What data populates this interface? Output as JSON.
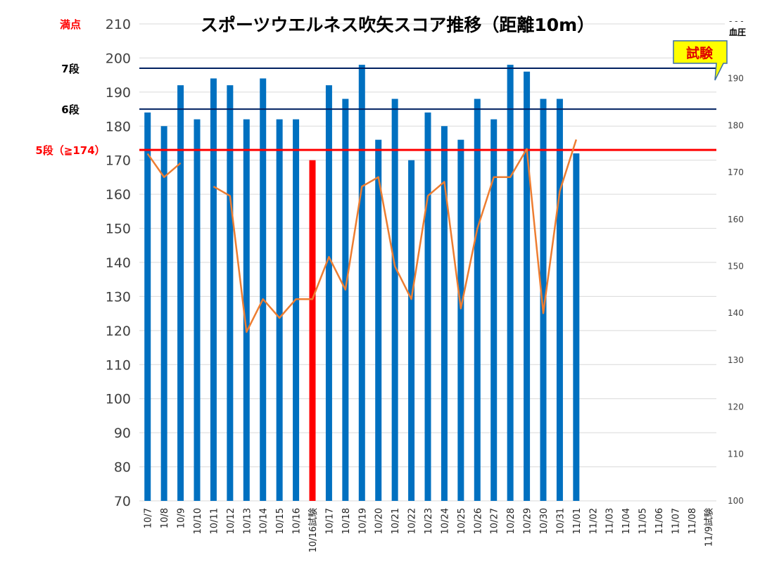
{
  "chart_data": {
    "type": "bar+line",
    "title": "スポーツウエルネス吹矢スコア推移（距離10m）",
    "categories": [
      "10/7",
      "10/8",
      "10/9",
      "10/10",
      "10/11",
      "10/12",
      "10/13",
      "10/14",
      "10/15",
      "10/16",
      "10/16試験",
      "10/17",
      "10/18",
      "10/19",
      "10/20",
      "10/21",
      "10/22",
      "10/23",
      "10/24",
      "10/25",
      "10/26",
      "10/27",
      "10/28",
      "10/29",
      "10/30",
      "10/31",
      "11/01",
      "11/02",
      "11/03",
      "11/04",
      "11/05",
      "11/06",
      "11/07",
      "11/08",
      "11/9試験"
    ],
    "y_axis": {
      "min": 70,
      "max": 210,
      "step": 10
    },
    "y2_axis": {
      "label": "血圧",
      "min": 100,
      "max": 200,
      "step": 10,
      "top_tick_label": "- - -"
    },
    "series": [
      {
        "kind": "bar",
        "axis": "left",
        "values": [
          184,
          180,
          192,
          182,
          194,
          192,
          182,
          194,
          182,
          182,
          170,
          192,
          188,
          198,
          176,
          188,
          170,
          184,
          180,
          176,
          188,
          182,
          198,
          196,
          188,
          188,
          172,
          null,
          null,
          null,
          null,
          null,
          null,
          null,
          null
        ],
        "color": "#0070c0",
        "highlight": {
          "index": 10,
          "color": "#ff0000"
        }
      },
      {
        "kind": "line",
        "axis": "right",
        "values": [
          174,
          169,
          172,
          null,
          167,
          165,
          136,
          143,
          139,
          143,
          143,
          152,
          145,
          167,
          169,
          150,
          143,
          165,
          168,
          141,
          158,
          169,
          169,
          175,
          140,
          166,
          177,
          null,
          null,
          null,
          null,
          null,
          null,
          null,
          null
        ],
        "color": "#ed7d31"
      }
    ],
    "reference_lines": [
      {
        "label": "満点",
        "value": 210,
        "color": "#ff0000"
      },
      {
        "label": "7段",
        "value": 197,
        "color": "#002060"
      },
      {
        "label": "6段",
        "value": 185,
        "color": "#002060"
      },
      {
        "label": "5段（≧174）",
        "value": 173,
        "color": "#ff0000"
      }
    ],
    "callout": {
      "text": "試験",
      "fill": "#ffff00",
      "text_color": "#e00000"
    }
  }
}
